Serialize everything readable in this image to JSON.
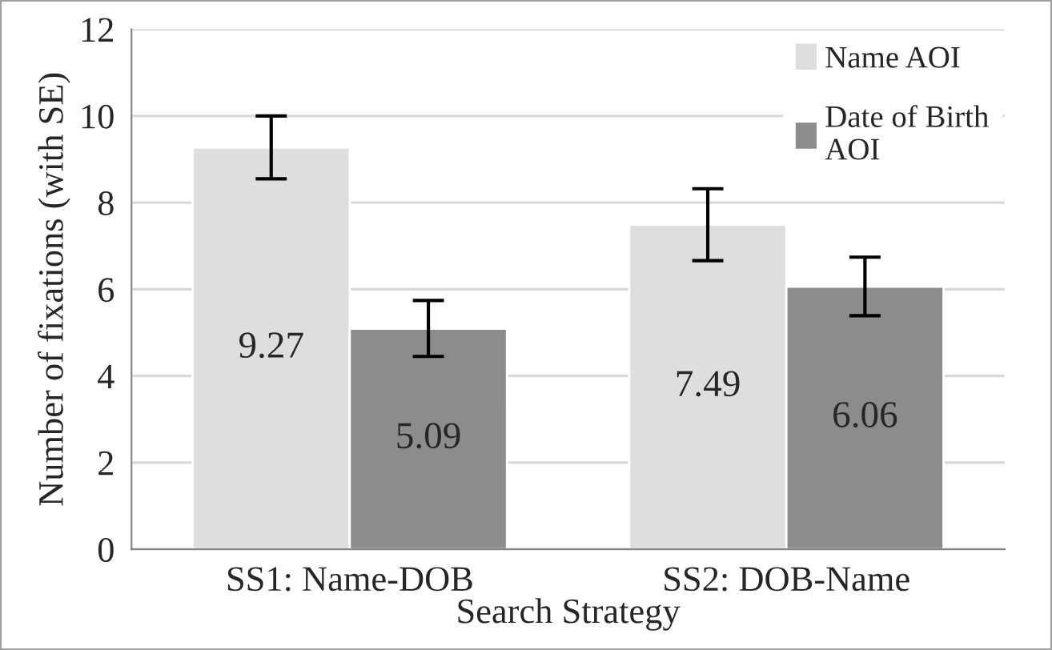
{
  "chart_data": {
    "type": "bar",
    "xlabel": "Search Strategy",
    "ylabel": "Number of fixations (with SE)",
    "categories": [
      "SS1: Name-DOB",
      "SS2: DOB-Name"
    ],
    "series": [
      {
        "name": "Name AOI",
        "color": "#dedede",
        "values": [
          9.27,
          7.49
        ],
        "errors": [
          [
            8.55,
            10.0
          ],
          [
            6.66,
            8.32
          ]
        ]
      },
      {
        "name": "Date of Birth\nAOI",
        "color": "#8c8c8c",
        "values": [
          5.09,
          6.06
        ],
        "errors": [
          [
            4.45,
            5.74
          ],
          [
            5.39,
            6.74
          ]
        ]
      }
    ],
    "ylim": [
      0,
      12
    ],
    "yticks": [
      0,
      2,
      4,
      6,
      8,
      10,
      12
    ],
    "grid": "y",
    "legend": "top right",
    "data_labels": true
  }
}
